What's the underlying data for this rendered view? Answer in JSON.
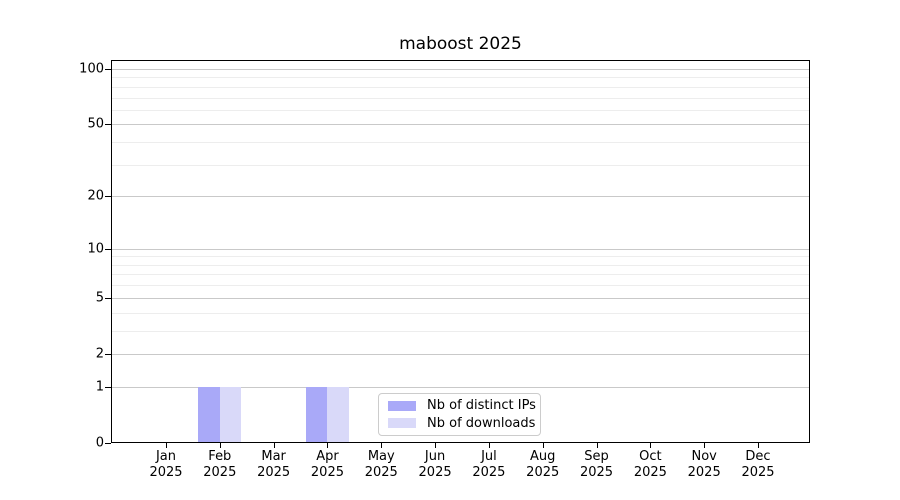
{
  "chart_data": {
    "type": "bar",
    "title": "maboost 2025",
    "categories": [
      "Jan 2025",
      "Feb 2025",
      "Mar 2025",
      "Apr 2025",
      "May 2025",
      "Jun 2025",
      "Jul 2025",
      "Aug 2025",
      "Sep 2025",
      "Oct 2025",
      "Nov 2025",
      "Dec 2025"
    ],
    "series": [
      {
        "name": "Nb of distinct IPs",
        "color": "#a9a9f8",
        "values": [
          0,
          1,
          0,
          1,
          0,
          0,
          0,
          0,
          0,
          0,
          0,
          0
        ]
      },
      {
        "name": "Nb of downloads",
        "color": "#d9d9f9",
        "values": [
          0,
          1,
          0,
          1,
          0,
          0,
          0,
          0,
          0,
          0,
          0,
          0
        ]
      }
    ],
    "yscale": "log1p",
    "ylim": [
      0,
      112
    ],
    "yticks": [
      0,
      1,
      2,
      5,
      10,
      20,
      50,
      100
    ],
    "yticks_minor": [
      3,
      4,
      6,
      7,
      8,
      9,
      30,
      40,
      60,
      70,
      80,
      90
    ],
    "grid": "horizontal",
    "legend_position": "lower center"
  },
  "colors": {
    "bar_distinct_ips": "#a9a9f8",
    "bar_downloads": "#d9d9f9",
    "grid_major": "#c9c9c9",
    "grid_minor": "#ededed",
    "axis": "#000000",
    "legend_border": "#cccccc",
    "background": "#ffffff",
    "text": "#000000"
  }
}
